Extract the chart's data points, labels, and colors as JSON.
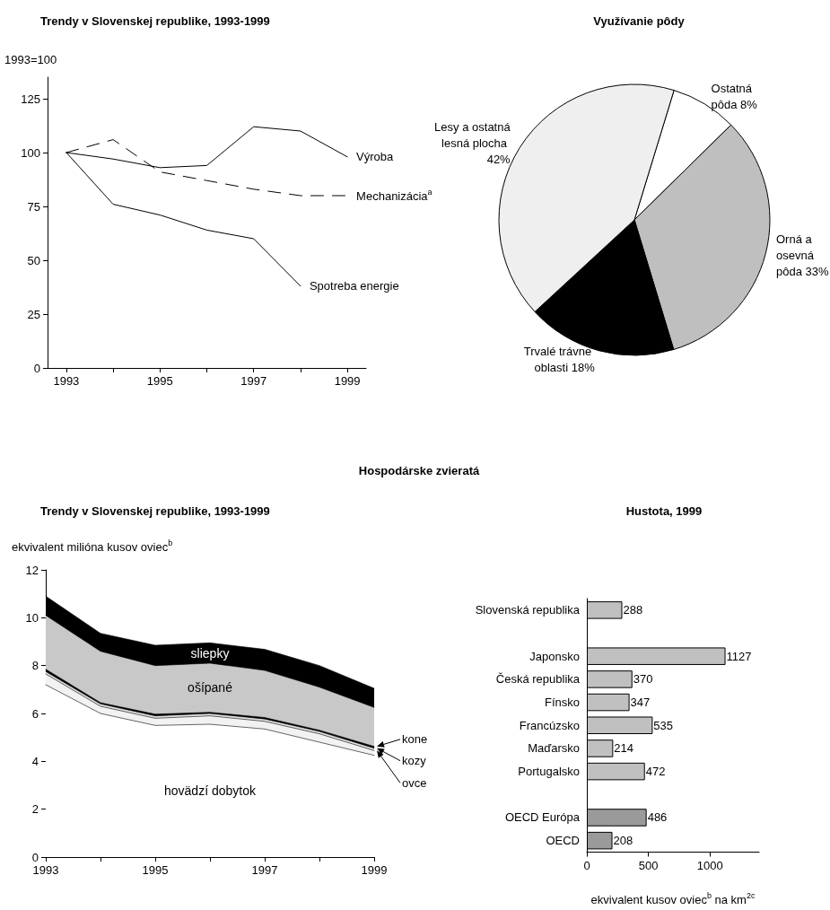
{
  "chart_data": [
    {
      "type": "line",
      "title": "Trendy v Slovenskej republike, 1993-1999",
      "ylabel": "1993=100",
      "x": [
        1993,
        1994,
        1995,
        1996,
        1997,
        1998,
        1999
      ],
      "xlim": [
        1992.6,
        1999.4
      ],
      "xticks": [
        1993,
        {
          "value": 1994,
          "label": null
        },
        1995,
        {
          "value": 1996,
          "label": null
        },
        1997,
        {
          "value": 1998,
          "label": null
        },
        1999
      ],
      "ylim": [
        0,
        135
      ],
      "yticks": [
        0,
        25,
        50,
        75,
        100,
        125
      ],
      "marker": "none",
      "series": [
        {
          "name": "Výroba",
          "color": "#000000",
          "line_style": "solid",
          "values": [
            100,
            97,
            93,
            94,
            112,
            110,
            98
          ]
        },
        {
          "name": "Mechanizácia$^{a}$",
          "color": "#000000",
          "line_style": "dashed",
          "values": [
            100,
            106,
            91,
            87,
            83,
            80,
            80
          ]
        },
        {
          "name": "Spotreba energie",
          "color": "#000000",
          "line_style": "solid",
          "x": [
            1993,
            1994,
            1995,
            1996,
            1997,
            1998
          ],
          "values": [
            100,
            76,
            71,
            64,
            60,
            38
          ]
        }
      ]
    },
    {
      "type": "pie",
      "title": "Využívanie pôdy",
      "categories": [
        "Ostatná pôda",
        "Orná a osevná pôda",
        "Trvalé trávne oblasti",
        "Lesy a ostatná lesná plocha"
      ],
      "values": [
        8,
        33,
        18,
        42
      ],
      "value_labels": [
        "8%",
        "33%",
        "18%",
        "42%"
      ],
      "colors": [
        "#ffffff",
        "#bfbfbf",
        "#000000",
        "#efefef"
      ]
    },
    {
      "type": "area",
      "title": "Trendy v Slovenskej republike, 1993-1999",
      "ylabel": "ekvivalent milióna kusov oviec$^{b}$",
      "annotations": [
        "Hospodárske zvieratá"
      ],
      "stacked": true,
      "legend": "right",
      "marker": "none",
      "x": [
        1993,
        1994,
        1995,
        1996,
        1997,
        1998,
        1999
      ],
      "xlim": [
        1993,
        1999
      ],
      "xticks": [
        1993,
        {
          "value": 1994,
          "label": null
        },
        1995,
        {
          "value": 1996,
          "label": null
        },
        1997,
        {
          "value": 1998,
          "label": null
        },
        1999
      ],
      "ylim": [
        0,
        12
      ],
      "yticks": [
        0,
        2,
        4,
        6,
        8,
        10,
        12
      ],
      "series": [
        {
          "name": "hovädzí dobytok",
          "color": "#ffffff",
          "values": [
            7.2,
            6.0,
            5.5,
            5.55,
            5.35,
            4.8,
            4.25
          ]
        },
        {
          "name": "ovce",
          "color": "#f2f2f2",
          "values": [
            0.45,
            0.3,
            0.3,
            0.35,
            0.32,
            0.35,
            0.2
          ]
        },
        {
          "name": "kozy",
          "color": "#e0e0e0",
          "values": [
            0.1,
            0.1,
            0.1,
            0.1,
            0.1,
            0.1,
            0.1
          ]
        },
        {
          "name": "kone",
          "color": "#000000",
          "values": [
            0.1,
            0.05,
            0.07,
            0.05,
            0.06,
            0.05,
            0.07
          ]
        },
        {
          "name": "ošípané",
          "color": "#c8c8c8",
          "values": [
            2.25,
            2.15,
            2.03,
            2.05,
            1.97,
            1.8,
            1.63
          ]
        },
        {
          "name": "sliepky",
          "color": "#000000",
          "values": [
            0.8,
            0.75,
            0.85,
            0.85,
            0.88,
            0.9,
            0.8
          ]
        }
      ]
    },
    {
      "type": "bar",
      "orientation": "horizontal",
      "title": "Hustota, 1999",
      "xlabel": "ekvivalent kusov oviec$^{b}$ na km$^{2c}$",
      "categories": [
        "Slovenská republika",
        null,
        "Japonsko",
        "Česká republika",
        "Fínsko",
        "Francúzsko",
        "Maďarsko",
        "Portugalsko",
        null,
        "OECD Európa",
        "OECD"
      ],
      "values": [
        288,
        null,
        1127,
        370,
        347,
        535,
        214,
        472,
        null,
        486,
        208
      ],
      "colors": [
        "#c0c0c0",
        null,
        "#c0c0c0",
        "#c0c0c0",
        "#c0c0c0",
        "#c0c0c0",
        "#c0c0c0",
        "#c0c0c0",
        null,
        "#9a9a9a",
        "#9a9a9a"
      ],
      "xlim": [
        0,
        1400
      ],
      "xticks": [
        0,
        500,
        1000
      ],
      "data_labels": true
    }
  ]
}
